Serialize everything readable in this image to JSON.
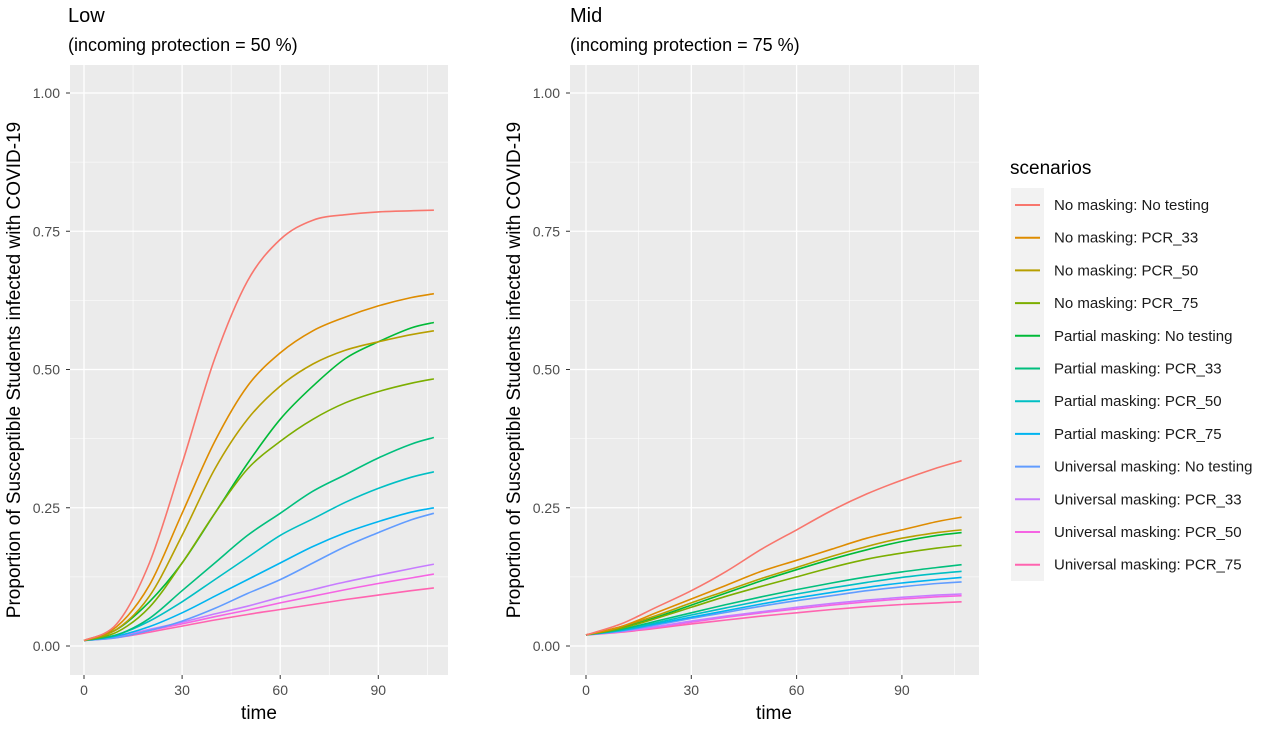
{
  "chart_data": [
    {
      "type": "line",
      "title": "Low",
      "subtitle": "(incoming protection =  50 %)",
      "xlabel": "time",
      "ylabel": "Proportion of Susceptible Students infected with COVID-19",
      "xlim": [
        0,
        107
      ],
      "ylim": [
        0,
        1.0
      ],
      "xticks": [
        0,
        30,
        60,
        90
      ],
      "xtick_labels": [
        "0",
        "30",
        "60",
        "90"
      ],
      "yticks": [
        0,
        0.25,
        0.5,
        0.75,
        1.0
      ],
      "ytick_labels": [
        "0.00",
        "0.25",
        "0.50",
        "0.75",
        "1.00"
      ],
      "grid": true,
      "x": [
        0,
        10,
        20,
        30,
        40,
        50,
        60,
        70,
        80,
        90,
        100,
        107
      ],
      "series": [
        {
          "name": "No masking: No testing",
          "values": [
            0.01,
            0.04,
            0.15,
            0.33,
            0.52,
            0.66,
            0.735,
            0.77,
            0.78,
            0.785,
            0.787,
            0.788
          ]
        },
        {
          "name": "No masking: PCR_33",
          "values": [
            0.01,
            0.035,
            0.11,
            0.24,
            0.37,
            0.47,
            0.53,
            0.57,
            0.595,
            0.615,
            0.63,
            0.637
          ]
        },
        {
          "name": "No masking: PCR_50",
          "values": [
            0.01,
            0.03,
            0.09,
            0.2,
            0.32,
            0.41,
            0.47,
            0.51,
            0.535,
            0.55,
            0.563,
            0.57
          ]
        },
        {
          "name": "No masking: PCR_75",
          "values": [
            0.01,
            0.025,
            0.07,
            0.15,
            0.24,
            0.32,
            0.37,
            0.41,
            0.44,
            0.46,
            0.475,
            0.483
          ]
        },
        {
          "name": "Partial masking: No testing",
          "values": [
            0.01,
            0.03,
            0.08,
            0.15,
            0.24,
            0.33,
            0.41,
            0.47,
            0.52,
            0.55,
            0.575,
            0.585
          ]
        },
        {
          "name": "Partial masking: PCR_33",
          "values": [
            0.01,
            0.02,
            0.05,
            0.1,
            0.15,
            0.2,
            0.24,
            0.28,
            0.31,
            0.34,
            0.365,
            0.377
          ]
        },
        {
          "name": "Partial masking: PCR_50",
          "values": [
            0.01,
            0.02,
            0.045,
            0.08,
            0.12,
            0.16,
            0.2,
            0.23,
            0.26,
            0.285,
            0.305,
            0.315
          ]
        },
        {
          "name": "Partial masking: PCR_75",
          "values": [
            0.01,
            0.018,
            0.035,
            0.06,
            0.09,
            0.12,
            0.15,
            0.18,
            0.205,
            0.225,
            0.242,
            0.25
          ]
        },
        {
          "name": "Universal masking: No testing",
          "values": [
            0.01,
            0.015,
            0.028,
            0.045,
            0.068,
            0.095,
            0.12,
            0.15,
            0.18,
            0.205,
            0.228,
            0.24
          ]
        },
        {
          "name": "Universal masking: PCR_33",
          "values": [
            0.01,
            0.017,
            0.03,
            0.043,
            0.058,
            0.072,
            0.088,
            0.102,
            0.116,
            0.128,
            0.14,
            0.148
          ]
        },
        {
          "name": "Universal masking: PCR_50",
          "values": [
            0.01,
            0.016,
            0.028,
            0.04,
            0.053,
            0.065,
            0.078,
            0.09,
            0.102,
            0.113,
            0.123,
            0.13
          ]
        },
        {
          "name": "Universal masking: PCR_75",
          "values": [
            0.01,
            0.015,
            0.025,
            0.036,
            0.047,
            0.057,
            0.066,
            0.075,
            0.084,
            0.092,
            0.1,
            0.105
          ]
        }
      ]
    },
    {
      "type": "line",
      "title": "Mid",
      "subtitle": "(incoming protection =  75 %)",
      "xlabel": "time",
      "ylabel": "Proportion of Susceptible Students infected with COVID-19",
      "xlim": [
        0,
        107
      ],
      "ylim": [
        0,
        1.0
      ],
      "xticks": [
        0,
        30,
        60,
        90
      ],
      "xtick_labels": [
        "0",
        "30",
        "60",
        "90"
      ],
      "yticks": [
        0,
        0.25,
        0.5,
        0.75,
        1.0
      ],
      "ytick_labels": [
        "0.00",
        "0.25",
        "0.50",
        "0.75",
        "1.00"
      ],
      "grid": true,
      "x": [
        0,
        10,
        20,
        30,
        40,
        50,
        60,
        70,
        80,
        90,
        100,
        107
      ],
      "series": [
        {
          "name": "No masking: No testing",
          "values": [
            0.02,
            0.04,
            0.07,
            0.1,
            0.135,
            0.175,
            0.21,
            0.245,
            0.275,
            0.3,
            0.322,
            0.335
          ]
        },
        {
          "name": "No masking: PCR_33",
          "values": [
            0.02,
            0.035,
            0.06,
            0.085,
            0.11,
            0.135,
            0.155,
            0.175,
            0.195,
            0.21,
            0.225,
            0.233
          ]
        },
        {
          "name": "No masking: PCR_50",
          "values": [
            0.02,
            0.035,
            0.055,
            0.078,
            0.1,
            0.122,
            0.142,
            0.162,
            0.18,
            0.195,
            0.205,
            0.21
          ]
        },
        {
          "name": "No masking: PCR_75",
          "values": [
            0.02,
            0.032,
            0.05,
            0.07,
            0.09,
            0.108,
            0.125,
            0.142,
            0.157,
            0.168,
            0.177,
            0.182
          ]
        },
        {
          "name": "Partial masking: No testing",
          "values": [
            0.02,
            0.033,
            0.052,
            0.074,
            0.096,
            0.118,
            0.138,
            0.157,
            0.174,
            0.189,
            0.2,
            0.205
          ]
        },
        {
          "name": "Partial masking: PCR_33",
          "values": [
            0.02,
            0.03,
            0.045,
            0.06,
            0.075,
            0.089,
            0.102,
            0.114,
            0.125,
            0.134,
            0.142,
            0.147
          ]
        },
        {
          "name": "Partial masking: PCR_50",
          "values": [
            0.02,
            0.029,
            0.042,
            0.056,
            0.069,
            0.082,
            0.094,
            0.105,
            0.115,
            0.124,
            0.131,
            0.135
          ]
        },
        {
          "name": "Partial masking: PCR_75",
          "values": [
            0.02,
            0.028,
            0.04,
            0.052,
            0.064,
            0.076,
            0.087,
            0.097,
            0.106,
            0.114,
            0.12,
            0.124
          ]
        },
        {
          "name": "Universal masking: No testing",
          "values": [
            0.02,
            0.027,
            0.038,
            0.05,
            0.061,
            0.072,
            0.082,
            0.091,
            0.1,
            0.107,
            0.113,
            0.116
          ]
        },
        {
          "name": "Universal masking: PCR_33",
          "values": [
            0.02,
            0.026,
            0.035,
            0.045,
            0.054,
            0.062,
            0.07,
            0.077,
            0.083,
            0.088,
            0.092,
            0.094
          ]
        },
        {
          "name": "Universal masking: PCR_50",
          "values": [
            0.02,
            0.026,
            0.034,
            0.043,
            0.052,
            0.06,
            0.067,
            0.074,
            0.08,
            0.085,
            0.089,
            0.091
          ]
        },
        {
          "name": "Universal masking: PCR_75",
          "values": [
            0.02,
            0.025,
            0.032,
            0.04,
            0.047,
            0.054,
            0.06,
            0.066,
            0.071,
            0.075,
            0.078,
            0.08
          ]
        }
      ]
    }
  ],
  "legend": {
    "title": "scenarios",
    "placement": "right",
    "entries": [
      {
        "label": "No masking: No testing",
        "color": "#F8766D"
      },
      {
        "label": "No masking: PCR_33",
        "color": "#DE8C00"
      },
      {
        "label": "No masking: PCR_50",
        "color": "#B79F00"
      },
      {
        "label": "No masking: PCR_75",
        "color": "#7CAE00"
      },
      {
        "label": "Partial masking: No testing",
        "color": "#00BA38"
      },
      {
        "label": "Partial masking: PCR_33",
        "color": "#00BF7D"
      },
      {
        "label": "Partial masking: PCR_50",
        "color": "#00BFC4"
      },
      {
        "label": "Partial masking: PCR_75",
        "color": "#00B4F0"
      },
      {
        "label": "Universal masking: No testing",
        "color": "#619CFF"
      },
      {
        "label": "Universal masking: PCR_33",
        "color": "#C77CFF"
      },
      {
        "label": "Universal masking: PCR_50",
        "color": "#F564E3"
      },
      {
        "label": "Universal masking: PCR_75",
        "color": "#FF64B0"
      }
    ]
  },
  "colors": {
    "panel_bg": "#EBEBEB",
    "grid_major": "#FFFFFF",
    "legend_key_bg": "#F2F2F2"
  }
}
